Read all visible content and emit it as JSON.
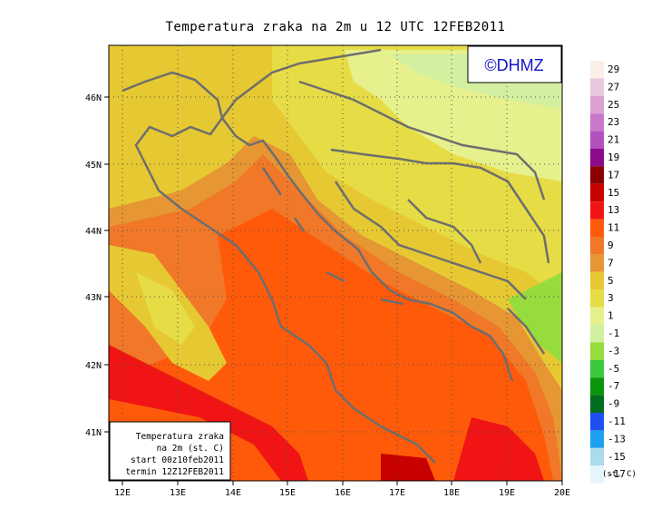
{
  "title": "Temperatura zraka na 2m u 12 UTC 12FEB2011",
  "logo_text": "©DHMZ",
  "info_box": {
    "lines": [
      "Temperatura zraka",
      "na 2m (st. C)",
      "start 00z10feb2011",
      "termin 12Z12FEB2011"
    ]
  },
  "axes": {
    "lon_labels": [
      "12E",
      "13E",
      "14E",
      "15E",
      "16E",
      "17E",
      "18E",
      "19E",
      "20E"
    ],
    "lat_labels": [
      "41N",
      "42N",
      "43N",
      "44N",
      "45N",
      "46N"
    ],
    "lon_range": [
      11.7,
      20.0
    ],
    "lat_range": [
      40.3,
      46.8
    ]
  },
  "colorbar": {
    "unit": "(st. C)",
    "labels": [
      "29",
      "27",
      "25",
      "23",
      "21",
      "19",
      "17",
      "15",
      "13",
      "11",
      "9",
      "7",
      "5",
      "3",
      "1",
      "-1",
      "-3",
      "-5",
      "-7",
      "-9",
      "-11",
      "-13",
      "-15",
      "-17"
    ],
    "colors": [
      "#fbeee6",
      "#e6c8dc",
      "#dca0d2",
      "#c878c8",
      "#b450be",
      "#8c0a8c",
      "#8c0000",
      "#c80000",
      "#f01414",
      "#ff5a0a",
      "#f07828",
      "#e69632",
      "#e6c832",
      "#e6dc46",
      "#e6f08c",
      "#d2f0a0",
      "#96dc3c",
      "#3cc83c",
      "#0a960a",
      "#006e1e",
      "#1e50f0",
      "#1ea0f0",
      "#aadceb",
      "#e6f5fa"
    ]
  }
}
